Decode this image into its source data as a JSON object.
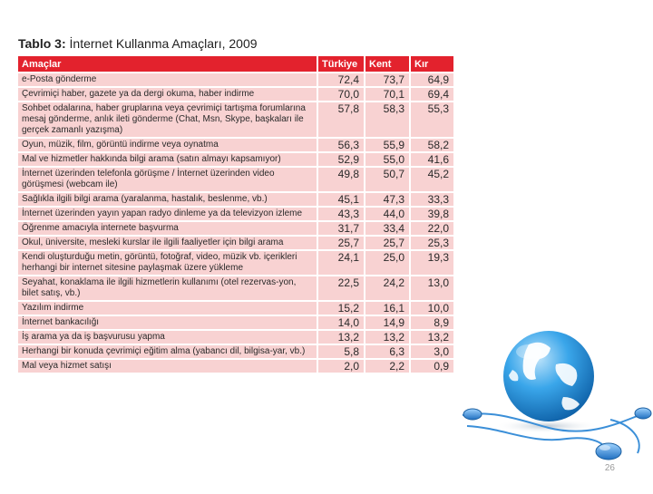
{
  "table": {
    "title_bold": "Tablo 3:",
    "title_rest": " İnternet Kullanma Amaçları, 2009",
    "headers": [
      "Amaçlar",
      "Türkiye",
      "Kent",
      "Kır"
    ],
    "rows": [
      {
        "label": "e-Posta gönderme",
        "turkiye": "72,4",
        "kent": "73,7",
        "kir": "64,9"
      },
      {
        "label": "Çevrimiçi haber, gazete ya da dergi okuma, haber indirme",
        "turkiye": "70,0",
        "kent": "70,1",
        "kir": "69,4"
      },
      {
        "label": "Sohbet odalarına, haber gruplarına veya çevrimiçi tartışma forumlarına mesaj gönderme, anlık ileti gönderme (Chat, Msn, Skype, başkaları ile gerçek zamanlı yazışma)",
        "turkiye": "57,8",
        "kent": "58,3",
        "kir": "55,3"
      },
      {
        "label": "Oyun, müzik, film, görüntü indirme veya oynatma",
        "turkiye": "56,3",
        "kent": "55,9",
        "kir": "58,2"
      },
      {
        "label": "Mal ve hizmetler hakkında bilgi arama (satın almayı kapsamıyor)",
        "turkiye": "52,9",
        "kent": "55,0",
        "kir": "41,6"
      },
      {
        "label": "İnternet üzerinden telefonla görüşme / İnternet üzerinden video görüşmesi (webcam ile)",
        "turkiye": "49,8",
        "kent": "50,7",
        "kir": "45,2"
      },
      {
        "label": "Sağlıkla ilgili bilgi arama (yaralanma, hastalık, beslenme, vb.)",
        "turkiye": "45,1",
        "kent": "47,3",
        "kir": "33,3"
      },
      {
        "label": "İnternet üzerinden yayın yapan radyo dinleme ya da televizyon izleme",
        "turkiye": "43,3",
        "kent": "44,0",
        "kir": "39,8"
      },
      {
        "label": "Öğrenme amacıyla internete başvurma",
        "turkiye": "31,7",
        "kent": "33,4",
        "kir": "22,0"
      },
      {
        "label": "Okul, üniversite, mesleki kurslar ile ilgili faaliyetler için bilgi arama",
        "turkiye": "25,7",
        "kent": "25,7",
        "kir": "25,3"
      },
      {
        "label": "Kendi oluşturduğu metin, görüntü, fotoğraf, video, müzik vb. içerikleri herhangi bir internet sitesine paylaşmak üzere yükleme",
        "turkiye": "24,1",
        "kent": "25,0",
        "kir": "19,3"
      },
      {
        "label": "Seyahat, konaklama ile ilgili hizmetlerin kullanımı (otel rezervas-yon, bilet satış, vb.)",
        "turkiye": "22,5",
        "kent": "24,2",
        "kir": "13,0"
      },
      {
        "label": "Yazılım indirme",
        "turkiye": "15,2",
        "kent": "16,1",
        "kir": "10,0"
      },
      {
        "label": "İnternet bankacılığı",
        "turkiye": "14,0",
        "kent": "14,9",
        "kir": "8,9"
      },
      {
        "label": "İş arama ya da iş başvurusu yapma",
        "turkiye": "13,2",
        "kent": "13,2",
        "kir": "13,2"
      },
      {
        "label": "Herhangi bir konuda çevrimiçi eğitim alma (yabancı dil, bilgisa-yar, vb.)",
        "turkiye": "5,8",
        "kent": "6,3",
        "kir": "3,0"
      },
      {
        "label": "Mal veya hizmet satışı",
        "turkiye": "2,0",
        "kent": "2,2",
        "kir": "0,9"
      }
    ]
  },
  "page_number": "26",
  "colors": {
    "header_red": "#e3222d",
    "row_pink": "#f8d2d2",
    "globe_blue": "#1f8fd6",
    "cable_blue": "#3b8fd8"
  }
}
